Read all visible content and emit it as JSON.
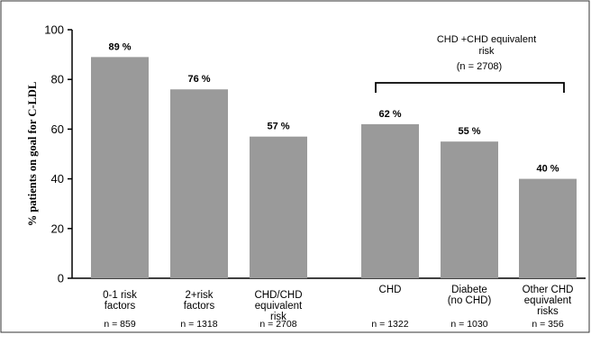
{
  "chart_data": {
    "type": "bar",
    "ylabel": "% patients on goal for C-LDL",
    "xlabel": "",
    "ylim": [
      0,
      100
    ],
    "yticks": [
      "0",
      "20",
      "40",
      "60",
      "80",
      "100"
    ],
    "grid": false,
    "bar_color": "#9a9a9a",
    "categories": [
      {
        "label_lines": [
          "0-1 risk",
          "factors"
        ],
        "n_label": "n = 859"
      },
      {
        "label_lines": [
          "2+risk",
          "factors"
        ],
        "n_label": "n = 1318"
      },
      {
        "label_lines": [
          "CHD/CHD",
          "equivalent",
          "risk"
        ],
        "n_label": "n = 2708"
      },
      {
        "label_lines": [
          "CHD"
        ],
        "n_label": "n = 1322"
      },
      {
        "label_lines": [
          "Diabete",
          "(no CHD)"
        ],
        "n_label": "n = 1030"
      },
      {
        "label_lines": [
          "Other CHD",
          "equivalent",
          "risks"
        ],
        "n_label": "n = 356"
      }
    ],
    "values": [
      89,
      76,
      57,
      62,
      55,
      40
    ],
    "data_labels": [
      "89 %",
      "76 %",
      "57 %",
      "62 %",
      "55 %",
      "40 %"
    ],
    "group_annotation": {
      "title_lines": [
        "CHD +CHD equivalent",
        "risk"
      ],
      "n_label": "(n = 2708)"
    }
  }
}
